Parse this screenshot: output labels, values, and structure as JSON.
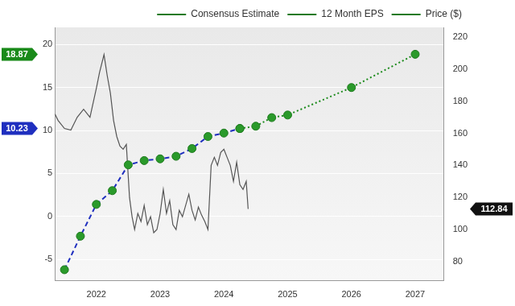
{
  "chart_data": {
    "type": "line",
    "legend": "top-right",
    "grid": true,
    "xlim": [
      2021.35,
      2027.45
    ],
    "xticks": [
      2022,
      2023,
      2024,
      2025,
      2026,
      2027
    ],
    "ylim": [
      -7.5,
      22
    ],
    "yticks": [
      -5,
      0,
      5,
      10,
      15,
      20
    ],
    "y2lim": [
      68,
      226
    ],
    "y2ticks": [
      80,
      100,
      120,
      140,
      160,
      180,
      200,
      220
    ],
    "series": [
      {
        "name": "Consensus Estimate",
        "color": "#1a8a1a",
        "line_style": "dotted",
        "marker": "circle",
        "x": [
          2024.25,
          2024.5,
          2024.75,
          2025,
          2026,
          2027
        ],
        "values": [
          10.23,
          10.5,
          11.5,
          11.8,
          15.0,
          18.87
        ]
      },
      {
        "name": "12 Month EPS",
        "color": "#1f2fbf",
        "line_style": "dashed",
        "marker": "circle",
        "x": [
          2021.5,
          2021.75,
          2022,
          2022.25,
          2022.5,
          2022.75,
          2023,
          2023.25,
          2023.5,
          2023.75,
          2024,
          2024.25
        ],
        "values": [
          -6.2,
          -2.3,
          1.4,
          3.0,
          6.0,
          6.5,
          6.7,
          7.0,
          7.9,
          9.3,
          9.7,
          10.23
        ]
      },
      {
        "name": "Price ($)",
        "color": "#555555",
        "line_style": "solid",
        "marker": "none",
        "axis": "y2",
        "x": [
          2021.35,
          2021.4,
          2021.5,
          2021.6,
          2021.7,
          2021.8,
          2021.9,
          2022.0,
          2022.05,
          2022.12,
          2022.17,
          2022.22,
          2022.27,
          2022.32,
          2022.37,
          2022.42,
          2022.47,
          2022.52,
          2022.56,
          2022.6,
          2022.65,
          2022.7,
          2022.75,
          2022.8,
          2022.85,
          2022.9,
          2022.95,
          2023.0,
          2023.05,
          2023.1,
          2023.15,
          2023.2,
          2023.25,
          2023.3,
          2023.35,
          2023.45,
          2023.5,
          2023.55,
          2023.6,
          2023.65,
          2023.7,
          2023.75,
          2023.8,
          2023.85,
          2023.9,
          2023.95,
          2024.0,
          2024.05,
          2024.1,
          2024.15,
          2024.2,
          2024.25,
          2024.3,
          2024.35,
          2024.38
        ],
        "values": [
          172,
          168,
          163,
          162,
          170,
          175,
          170,
          188,
          198,
          209,
          196,
          185,
          168,
          158,
          152,
          150,
          153,
          120,
          108,
          100,
          110,
          105,
          115,
          103,
          108,
          98,
          100,
          110,
          125,
          110,
          118,
          103,
          100,
          112,
          108,
          122,
          112,
          106,
          114,
          109,
          105,
          100,
          140,
          145,
          140,
          148,
          150,
          145,
          140,
          130,
          142,
          128,
          125,
          130,
          112.84
        ]
      }
    ],
    "annotations": [
      {
        "text": "18.87",
        "value": 18.87,
        "axis": "y",
        "color": "#1a8a1a"
      },
      {
        "text": "10.23",
        "value": 10.23,
        "axis": "y",
        "color": "#1f2fbf"
      },
      {
        "text": "112.84",
        "value": 112.84,
        "axis": "y2",
        "color": "#111111"
      }
    ]
  }
}
